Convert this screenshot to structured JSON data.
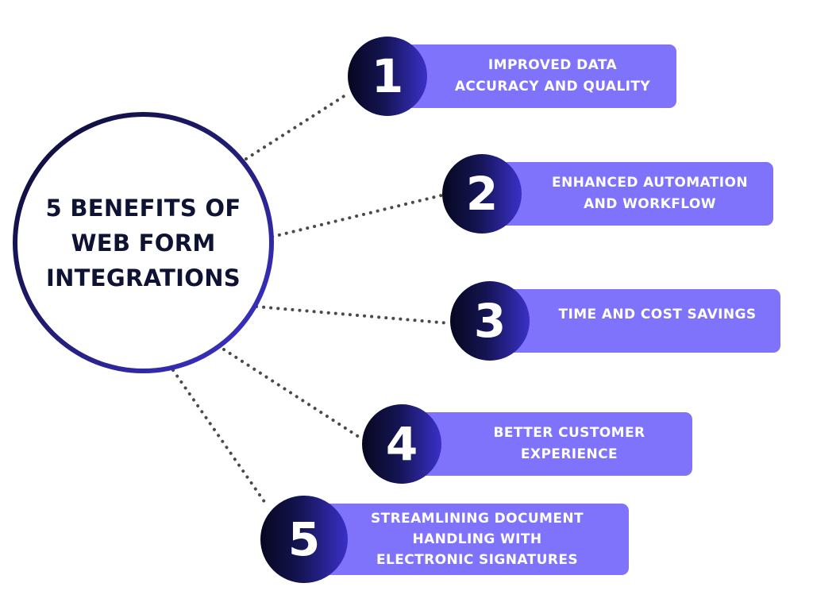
{
  "hub": {
    "title": "5 BENEFITS OF\nWEB FORM\nINTEGRATIONS"
  },
  "benefits": [
    {
      "number": "1",
      "text": "IMPROVED DATA\nACCURACY AND QUALITY"
    },
    {
      "number": "2",
      "text": "ENHANCED AUTOMATION\nAND WORKFLOW"
    },
    {
      "number": "3",
      "text": "TIME AND COST SAVINGS"
    },
    {
      "number": "4",
      "text": "BETTER CUSTOMER\nEXPERIENCE"
    },
    {
      "number": "5",
      "text": "STREAMLINING DOCUMENT\nHANDLING WITH\nELECTRONIC SIGNATURES"
    }
  ],
  "colors": {
    "box": "#7f73fb",
    "badge_dark": "#070720",
    "badge_light": "#3a30c8",
    "title": "#0e1233",
    "connector": "#4a4a4a"
  }
}
